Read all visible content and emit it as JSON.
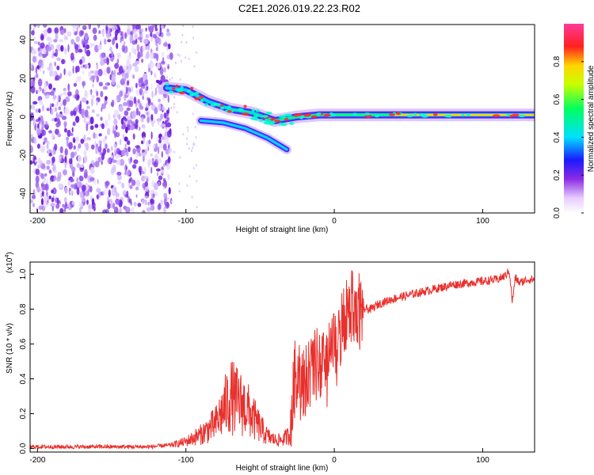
{
  "title": "C2E1.2026.019.22.23.R02",
  "colors": {
    "snr_line": "#e8302c",
    "heatmap_low": "#7b2be0",
    "heatmap_mid": "#00e0e0",
    "heatmap_high": "#ff2020"
  },
  "chart_data": [
    {
      "type": "heatmap",
      "title": "C2E1.2026.019.22.23.R02",
      "xlabel": "Height of straight line (km)",
      "ylabel": "Frequency (Hz)",
      "xlim": [
        -205,
        135
      ],
      "ylim": [
        -50,
        48
      ],
      "xticks": [
        -200,
        -100,
        0,
        100
      ],
      "yticks": [
        -40,
        -20,
        0,
        20,
        40
      ],
      "colorbar": {
        "label": "Normalized spectral amplitude",
        "range": [
          0,
          1
        ],
        "ticks": [
          0.0,
          0.2,
          0.4,
          0.6,
          0.8
        ]
      },
      "features": [
        {
          "region": "noise",
          "x_range": [
            -205,
            -113
          ],
          "y_range": [
            -50,
            48
          ],
          "amplitude": 0.15
        },
        {
          "region": "signal-track",
          "points": [
            {
              "x": -113,
              "y": 15
            },
            {
              "x": -100,
              "y": 14
            },
            {
              "x": -85,
              "y": 8
            },
            {
              "x": -70,
              "y": 4
            },
            {
              "x": -55,
              "y": 2
            },
            {
              "x": -40,
              "y": -2
            },
            {
              "x": -25,
              "y": 0
            },
            {
              "x": -10,
              "y": 1
            },
            {
              "x": 0,
              "y": 1
            },
            {
              "x": 40,
              "y": 1
            },
            {
              "x": 80,
              "y": 1
            },
            {
              "x": 135,
              "y": 1
            }
          ]
        },
        {
          "region": "lower-branch",
          "points": [
            {
              "x": -90,
              "y": -2
            },
            {
              "x": -75,
              "y": -3
            },
            {
              "x": -60,
              "y": -6
            },
            {
              "x": -45,
              "y": -11
            },
            {
              "x": -32,
              "y": -17
            }
          ]
        }
      ]
    },
    {
      "type": "line",
      "xlabel": "Height of straight line (km)",
      "ylabel": "SNR (10 * v/v)",
      "ylabel_exponent": "(x10",
      "ylabel_exponent_power": "4",
      "ylabel_exponent_close": ")",
      "xlim": [
        -205,
        135
      ],
      "ylim": [
        -0.02,
        1.07
      ],
      "xticks": [
        -200,
        -100,
        0,
        100
      ],
      "yticks": [
        0.0,
        0.2,
        0.4,
        0.6,
        0.8,
        1.0
      ],
      "series": [
        {
          "name": "SNR",
          "x": [
            -205,
            -180,
            -150,
            -125,
            -110,
            -100,
            -90,
            -80,
            -75,
            -70,
            -65,
            -60,
            -55,
            -50,
            -45,
            -40,
            -35,
            -30,
            -26,
            -22,
            -18,
            -14,
            -10,
            -6,
            -2,
            2,
            6,
            10,
            15,
            20,
            25,
            30,
            40,
            50,
            60,
            70,
            80,
            90,
            100,
            110,
            115,
            118,
            120,
            122,
            125,
            130,
            135
          ],
          "y": [
            0.01,
            0.01,
            0.01,
            0.01,
            0.02,
            0.04,
            0.08,
            0.14,
            0.22,
            0.3,
            0.27,
            0.24,
            0.18,
            0.12,
            0.07,
            0.05,
            0.05,
            0.08,
            0.45,
            0.36,
            0.42,
            0.45,
            0.5,
            0.44,
            0.55,
            0.58,
            0.7,
            0.8,
            0.82,
            0.8,
            0.8,
            0.83,
            0.86,
            0.88,
            0.9,
            0.92,
            0.94,
            0.95,
            0.96,
            0.97,
            0.99,
            1.02,
            0.84,
            0.98,
            0.95,
            0.97,
            0.97
          ]
        }
      ]
    }
  ]
}
